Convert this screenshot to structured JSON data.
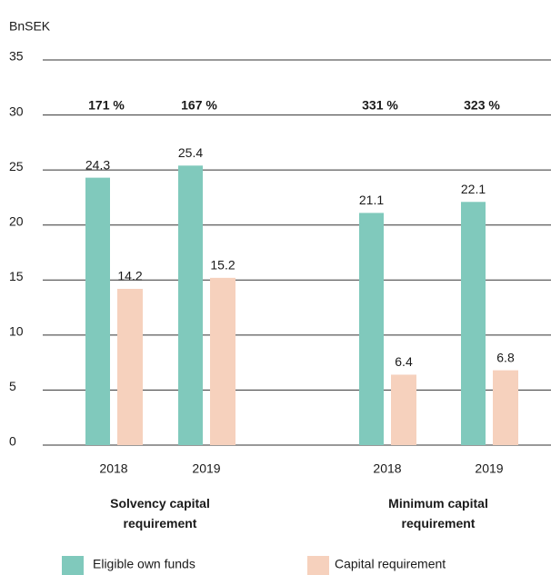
{
  "chart_data": {
    "type": "bar",
    "y_label": "BnSEK",
    "categories": [
      "2018",
      "2019",
      "2018",
      "2019"
    ],
    "groups": [
      "Solvency capital requirement",
      "Minimum capital requirement"
    ],
    "series": [
      {
        "name": "Eligible own funds",
        "color": "#80c9bc",
        "values": [
          24.3,
          25.4,
          21.1,
          22.1
        ]
      },
      {
        "name": "Capital requirement",
        "color": "#f6d1bd",
        "values": [
          14.2,
          15.2,
          6.4,
          6.8
        ]
      }
    ],
    "annotations": [
      "171 %",
      "167 %",
      "331 %",
      "323 %"
    ],
    "ylim": [
      0,
      35
    ],
    "yticks": [
      0,
      5,
      10,
      15,
      20,
      25,
      30,
      35
    ],
    "grid": true
  }
}
